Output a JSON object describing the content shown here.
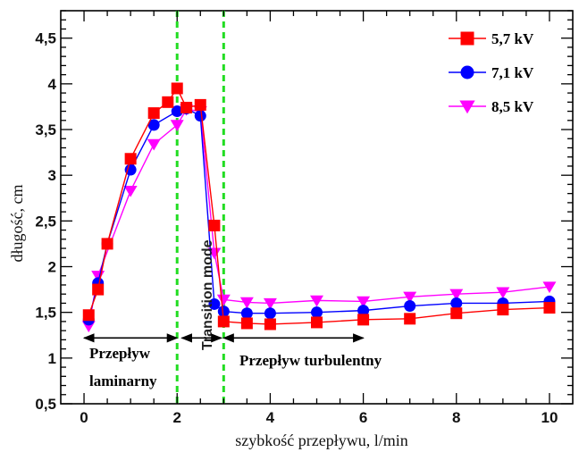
{
  "chart_data": {
    "type": "line",
    "xlabel": "szybkość przepływu, l/min",
    "ylabel": "długość, cm",
    "xlim": [
      -0.5,
      10.5
    ],
    "ylim": [
      0.5,
      4.8
    ],
    "xticks": [
      0,
      2,
      4,
      6,
      8,
      10
    ],
    "yticks": [
      0.5,
      1,
      1.5,
      2,
      2.5,
      3,
      3.5,
      4,
      4.5
    ],
    "yticklabels": [
      "0,5",
      "1",
      "1,5",
      "2",
      "2,5",
      "3",
      "3,5",
      "4",
      "4,5"
    ],
    "grid": false,
    "legend_position": "top-right",
    "vlines": [
      2,
      3
    ],
    "vline_color": "#22dd22",
    "series": [
      {
        "name": "5,7 kV",
        "color": "#ff0000",
        "marker": "square",
        "x": [
          0.1,
          0.3,
          0.5,
          1.0,
          1.5,
          1.8,
          2.0,
          2.2,
          2.5,
          2.8,
          3.0,
          3.5,
          4.0,
          5.0,
          6.0,
          7.0,
          8.0,
          9.0,
          10.0
        ],
        "y": [
          1.47,
          1.75,
          2.25,
          3.18,
          3.68,
          3.8,
          3.95,
          3.74,
          3.77,
          2.45,
          1.4,
          1.38,
          1.37,
          1.39,
          1.42,
          1.43,
          1.49,
          1.53,
          1.55
        ]
      },
      {
        "name": "7,1 kV",
        "color": "#0000ff",
        "marker": "circle",
        "x": [
          0.1,
          0.3,
          0.5,
          1.0,
          1.5,
          2.0,
          2.2,
          2.5,
          2.8,
          3.0,
          3.5,
          4.0,
          5.0,
          6.0,
          7.0,
          8.0,
          9.0,
          10.0
        ],
        "y": [
          1.42,
          1.82,
          2.25,
          3.06,
          3.55,
          3.7,
          3.73,
          3.65,
          1.59,
          1.51,
          1.49,
          1.49,
          1.5,
          1.52,
          1.57,
          1.6,
          1.6,
          1.62
        ]
      },
      {
        "name": "8,5 kV",
        "color": "#ff00ff",
        "marker": "triangle-down",
        "x": [
          0.1,
          0.3,
          1.0,
          1.5,
          2.0,
          2.2,
          2.5,
          2.8,
          3.0,
          3.5,
          4.0,
          5.0,
          6.0,
          7.0,
          8.0,
          9.0,
          10.0
        ],
        "y": [
          1.35,
          1.9,
          2.83,
          3.34,
          3.55,
          3.72,
          3.7,
          2.15,
          1.64,
          1.61,
          1.6,
          1.63,
          1.62,
          1.67,
          1.7,
          1.72,
          1.78
        ]
      }
    ],
    "annotations": {
      "laminar_line1": "Przepływ",
      "laminar_line2": "laminarny",
      "transition": "Transition mode",
      "turbulent": "Przepływ turbulentny"
    },
    "arrows": [
      {
        "x1": 0.0,
        "x2": 2.0,
        "y": 1.22
      },
      {
        "x1": 2.1,
        "x2": 2.95,
        "y": 1.22
      },
      {
        "x1": 3.0,
        "x2": 6.0,
        "y": 1.22
      }
    ]
  }
}
